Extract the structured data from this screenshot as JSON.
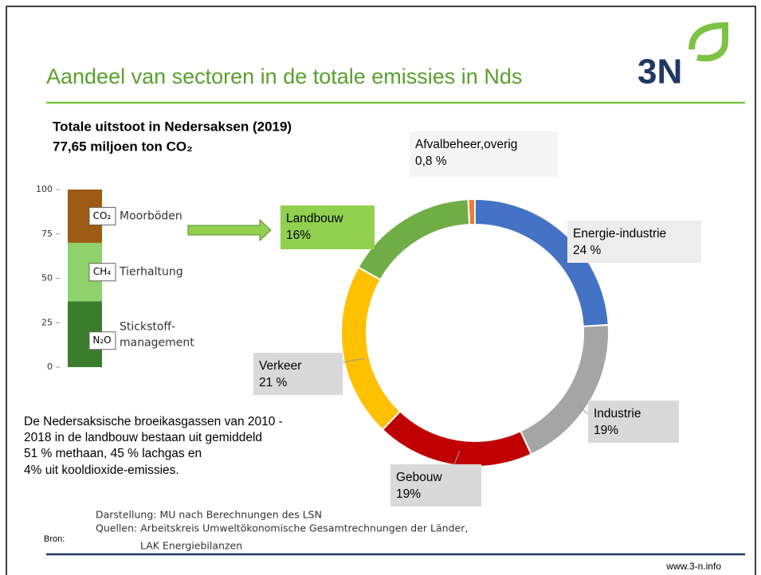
{
  "title": "Aandeel van sectoren in de totale emissies in Nds",
  "logo": "3N",
  "heading": [
    "Totale uitstoot in Nedersaksen (2019)",
    "77,65 miljoen ton CO₂"
  ],
  "note": [
    "De Nedersaksische broeikasgassen van 2010 -",
    "2018 in de landbouw bestaan uit gemiddeld",
    "51 % methaan, 45 % lachgas en",
    "4% uit kooldioxide-emissies."
  ],
  "source_label": "Bron:",
  "source": [
    "Darstellung: MU nach Berechnungen des LSN",
    "Quellen: Arbeitskreis Umweltökonomische Gesamtrechnungen der Länder,",
    "LAK Energiebilanzen"
  ],
  "url": "www.3-n.info",
  "chart_data": [
    {
      "type": "donut",
      "categories": [
        "Energie-industrie",
        "Industrie",
        "Gebouw",
        "Verkeer",
        "Landbouw",
        "Afvalbeheer,overig"
      ],
      "values": [
        24,
        19,
        19,
        21,
        16,
        0.8
      ],
      "value_labels": [
        "24 %",
        "19%",
        "19%",
        "21 %",
        "16%",
        "0,8 %"
      ],
      "colors": [
        "#4472c4",
        "#a5a5a5",
        "#c00000",
        "#ffc000",
        "#70ad47",
        "#ed7d31"
      ]
    },
    {
      "type": "stacked-bar",
      "ylim": [
        0,
        100
      ],
      "yticks": [
        0,
        25,
        50,
        75,
        100
      ],
      "series": [
        {
          "name": "N₂O",
          "label": [
            "Stickstoff-",
            "management"
          ],
          "color": "#3a7d2c",
          "values": [
            37
          ]
        },
        {
          "name": "CH₄",
          "label": [
            "Tierhaltung"
          ],
          "color": "#8fd16a",
          "values": [
            33
          ]
        },
        {
          "name": "CO₂",
          "label": [
            "Moorböden"
          ],
          "color": "#9c5a12",
          "values": [
            30
          ]
        }
      ]
    }
  ]
}
